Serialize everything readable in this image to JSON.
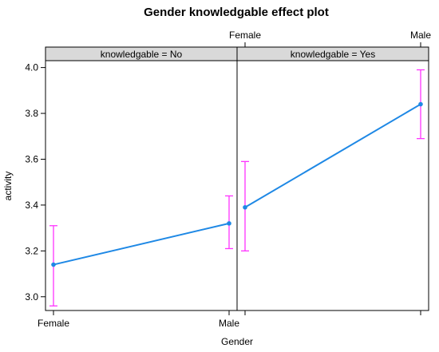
{
  "chart_data": {
    "type": "line",
    "title": "Gender knowledgable effect plot",
    "xlabel": "Gender",
    "ylabel": "activity",
    "categories": [
      "Female",
      "Male"
    ],
    "ylim": [
      2.94,
      4.03
    ],
    "yticks": [
      3.0,
      3.2,
      3.4,
      3.6,
      3.8,
      4.0
    ],
    "ytick_labels": [
      "3.0",
      "3.2",
      "3.4",
      "3.6",
      "3.8",
      "4.0"
    ],
    "grid": false,
    "colors": {
      "line": "#1e88e5",
      "errorbar": "#ff33ff",
      "strip": "#d9d9d9"
    },
    "panels": [
      {
        "strip_label": "knowledgable = No",
        "fit": [
          3.14,
          3.32
        ],
        "lower": [
          2.96,
          3.21
        ],
        "upper": [
          3.31,
          3.44
        ]
      },
      {
        "strip_label": "knowledgable = Yes",
        "fit": [
          3.39,
          3.84
        ],
        "lower": [
          3.2,
          3.69
        ],
        "upper": [
          3.59,
          3.99
        ]
      }
    ]
  }
}
